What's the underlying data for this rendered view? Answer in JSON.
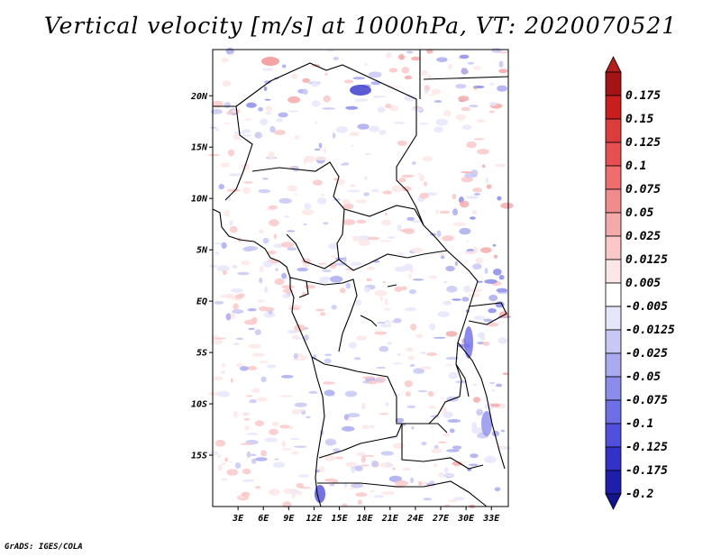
{
  "title": "Vertical velocity [m/s] at 1000hPa, VT: 2020070521",
  "credit": "GrADS: IGES/COLA",
  "map": {
    "lon_range": [
      0,
      35
    ],
    "lat_range": [
      -20,
      24.5
    ],
    "lat_ticks": [
      {
        "value": 20,
        "label": "20N"
      },
      {
        "value": 15,
        "label": "15N"
      },
      {
        "value": 10,
        "label": "10N"
      },
      {
        "value": 5,
        "label": "5N"
      },
      {
        "value": 0,
        "label": "EQ"
      },
      {
        "value": -5,
        "label": "5S"
      },
      {
        "value": -10,
        "label": "10S"
      },
      {
        "value": -15,
        "label": "15S"
      }
    ],
    "lon_ticks": [
      {
        "value": 3,
        "label": "3E"
      },
      {
        "value": 6,
        "label": "6E"
      },
      {
        "value": 9,
        "label": "9E"
      },
      {
        "value": 12,
        "label": "12E"
      },
      {
        "value": 15,
        "label": "15E"
      },
      {
        "value": 18,
        "label": "18E"
      },
      {
        "value": 21,
        "label": "21E"
      },
      {
        "value": 24,
        "label": "24E"
      },
      {
        "value": 27,
        "label": "27E"
      },
      {
        "value": 30,
        "label": "30E"
      },
      {
        "value": 33,
        "label": "33E"
      }
    ]
  },
  "colorbar": {
    "levels": [
      {
        "label": "0.175",
        "color": "#a51414"
      },
      {
        "label": "0.15",
        "color": "#c81e1e"
      },
      {
        "label": "0.125",
        "color": "#dc3c3c"
      },
      {
        "label": "0.1",
        "color": "#e65050"
      },
      {
        "label": "0.075",
        "color": "#ee6e6e"
      },
      {
        "label": "0.05",
        "color": "#f08c8c"
      },
      {
        "label": "0.025",
        "color": "#f5aaaa"
      },
      {
        "label": "0.0125",
        "color": "#fac8c8"
      },
      {
        "label": "0.005",
        "color": "#fde6e6"
      },
      {
        "label": "-0.005",
        "color": "#ffffff"
      },
      {
        "label": "-0.0125",
        "color": "#e6e6fb"
      },
      {
        "label": "-0.025",
        "color": "#c8c8f5"
      },
      {
        "label": "-0.05",
        "color": "#aaaaf0"
      },
      {
        "label": "-0.075",
        "color": "#8c8ceb"
      },
      {
        "label": "-0.1",
        "color": "#6e6ee6"
      },
      {
        "label": "-0.125",
        "color": "#5050dc"
      },
      {
        "label": "-0.175",
        "color": "#3232c8"
      },
      {
        "label": "-0.2",
        "color": "#1e1eaa"
      }
    ],
    "top_color": "#b41e1e",
    "bottom_color": "#14148c"
  }
}
